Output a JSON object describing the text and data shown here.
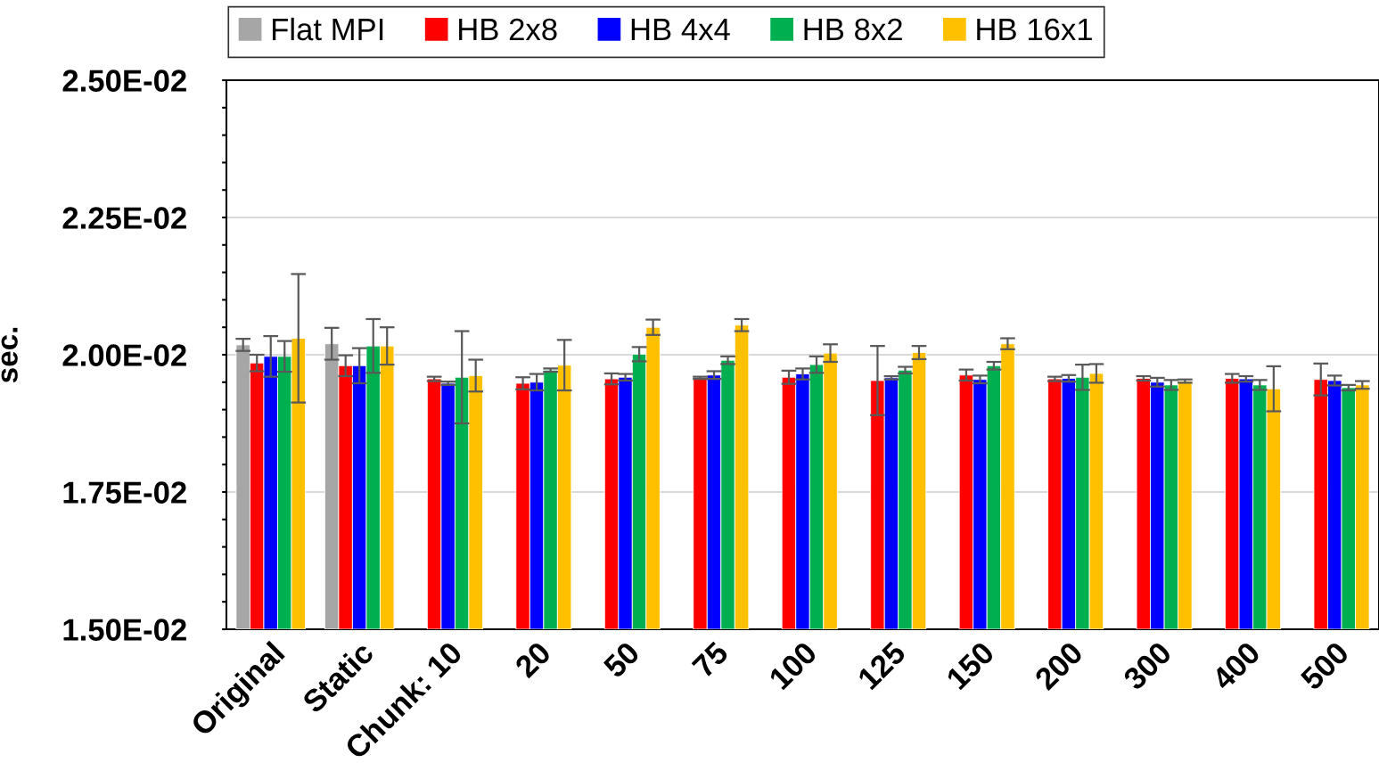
{
  "chart_data": {
    "type": "bar",
    "ylabel": "sec.",
    "categories": [
      "Original",
      "Static",
      "Chunk: 10",
      "20",
      "50",
      "75",
      "100",
      "125",
      "150",
      "200",
      "300",
      "400",
      "500"
    ],
    "series": [
      {
        "name": "Flat MPI",
        "color": "#a6a6a6",
        "values": [
          0.02018,
          0.0202,
          null,
          null,
          null,
          null,
          null,
          null,
          null,
          null,
          null,
          null,
          null
        ],
        "errors": [
          0.00011,
          0.00029,
          null,
          null,
          null,
          null,
          null,
          null,
          null,
          null,
          null,
          null,
          null
        ]
      },
      {
        "name": "HB 2x8",
        "color": "#ff0000",
        "values": [
          0.01985,
          0.0198,
          0.01956,
          0.01948,
          0.01956,
          0.01958,
          0.01959,
          0.01953,
          0.01963,
          0.01956,
          0.01957,
          0.01957,
          0.01955
        ],
        "errors": [
          0.00015,
          0.00019,
          4e-05,
          0.00011,
          0.0001,
          2e-05,
          0.00012,
          0.00063,
          0.0001,
          4e-05,
          4e-05,
          8e-05,
          0.00029
        ]
      },
      {
        "name": "HB 4x4",
        "color": "#0000ff",
        "values": [
          0.01997,
          0.0198,
          0.01948,
          0.0195,
          0.01959,
          0.01963,
          0.01965,
          0.01958,
          0.01955,
          0.01957,
          0.0195,
          0.01956,
          0.01953
        ],
        "errors": [
          0.00037,
          0.00032,
          3e-05,
          0.00015,
          6e-05,
          7e-05,
          0.0001,
          3e-05,
          7e-05,
          6e-05,
          8e-05,
          5e-05,
          9e-05
        ]
      },
      {
        "name": "HB 8x2",
        "color": "#00b050",
        "values": [
          0.01997,
          0.02016,
          0.01959,
          0.01972,
          0.02001,
          0.0199,
          0.01982,
          0.01972,
          0.0198,
          0.01959,
          0.01945,
          0.01945,
          0.0194
        ],
        "errors": [
          0.00028,
          0.00049,
          0.00084,
          3e-05,
          0.00013,
          7e-05,
          0.00015,
          6e-05,
          7e-05,
          0.00023,
          9e-05,
          9e-05,
          5e-05
        ]
      },
      {
        "name": "HB 16x1",
        "color": "#ffc000",
        "values": [
          0.0203,
          0.02016,
          0.01962,
          0.01981,
          0.0205,
          0.02054,
          0.02003,
          0.02004,
          0.0202,
          0.01966,
          0.01952,
          0.01938,
          0.01945
        ],
        "errors": [
          0.00117,
          0.00034,
          0.00029,
          0.00046,
          0.00014,
          0.00011,
          0.00016,
          0.00012,
          0.0001,
          0.00017,
          3e-05,
          0.00041,
          7e-05
        ]
      }
    ],
    "ylim": [
      0.015,
      0.025
    ],
    "yticks": [
      {
        "value": 0.015,
        "label": "1.50E-02"
      },
      {
        "value": 0.0155,
        "label": null
      },
      {
        "value": 0.016,
        "label": null
      },
      {
        "value": 0.0165,
        "label": null
      },
      {
        "value": 0.017,
        "label": null
      },
      {
        "value": 0.0175,
        "label": "1.75E-02"
      },
      {
        "value": 0.018,
        "label": null
      },
      {
        "value": 0.0185,
        "label": null
      },
      {
        "value": 0.019,
        "label": null
      },
      {
        "value": 0.0195,
        "label": null
      },
      {
        "value": 0.02,
        "label": "2.00E-02"
      },
      {
        "value": 0.0205,
        "label": null
      },
      {
        "value": 0.021,
        "label": null
      },
      {
        "value": 0.0215,
        "label": null
      },
      {
        "value": 0.022,
        "label": null
      },
      {
        "value": 0.0225,
        "label": "2.25E-02"
      },
      {
        "value": 0.023,
        "label": null
      },
      {
        "value": 0.0235,
        "label": null
      },
      {
        "value": 0.024,
        "label": null
      },
      {
        "value": 0.0245,
        "label": null
      },
      {
        "value": 0.025,
        "label": "2.50E-02"
      }
    ],
    "grid": "y",
    "legend": "top"
  }
}
